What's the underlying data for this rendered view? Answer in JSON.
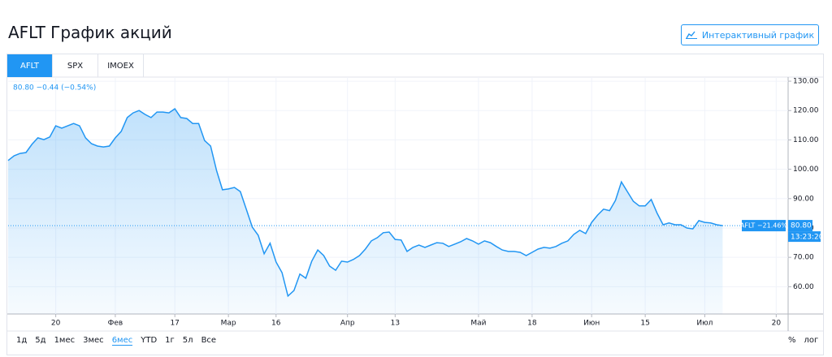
{
  "header": {
    "title": "AFLT График акций",
    "button": "Интерактивный график"
  },
  "tabs": {
    "items": [
      "AFLT",
      "SPX",
      "IMOEX"
    ],
    "active": "AFLT"
  },
  "ranges": {
    "items": [
      "1д",
      "5д",
      "1мес",
      "3мес",
      "6мес",
      "YTD",
      "1г",
      "5л",
      "Все"
    ],
    "active": "6мес",
    "right": [
      "%",
      "лог"
    ]
  },
  "chart_data": {
    "type": "line",
    "legend_text": "80.80 −0.44 (−0.54%)",
    "price_name_label": "AFLT −21.46%",
    "last_price_label": "80.80",
    "time_label": "13:23:20",
    "color": "#2196f3",
    "grid": true,
    "ylim": [
      50.7,
      131.4
    ],
    "yticks": [
      {
        "value": 60,
        "label": "60.00"
      },
      {
        "value": 70,
        "label": "70.00"
      },
      {
        "value": 80,
        "label": "80.00"
      },
      {
        "value": 90,
        "label": "90.00"
      },
      {
        "value": 100,
        "label": "100.00"
      },
      {
        "value": 110,
        "label": "110.00"
      },
      {
        "value": 120,
        "label": "120.00"
      },
      {
        "value": 130,
        "label": "130.00"
      }
    ],
    "categories": [
      null,
      null,
      null,
      null,
      null,
      null,
      null,
      null,
      "20",
      null,
      null,
      null,
      null,
      null,
      null,
      null,
      null,
      null,
      "Фев",
      null,
      null,
      null,
      null,
      null,
      null,
      null,
      null,
      null,
      "17",
      null,
      null,
      null,
      null,
      null,
      null,
      null,
      null,
      "Мар",
      null,
      null,
      null,
      null,
      null,
      null,
      null,
      "16",
      null,
      null,
      null,
      null,
      null,
      null,
      null,
      null,
      null,
      null,
      null,
      "Апр",
      null,
      null,
      null,
      null,
      null,
      null,
      null,
      "13",
      null,
      null,
      null,
      null,
      null,
      null,
      null,
      null,
      null,
      null,
      null,
      null,
      null,
      "Май",
      null,
      null,
      null,
      null,
      null,
      null,
      null,
      null,
      "18",
      null,
      null,
      null,
      null,
      null,
      null,
      null,
      null,
      null,
      "Июн",
      null,
      null,
      null,
      null,
      null,
      null,
      null,
      null,
      "15",
      null,
      null,
      null,
      null,
      null,
      null,
      null,
      null,
      null,
      "Июл",
      null,
      null,
      null,
      null,
      null,
      null,
      null,
      null,
      null,
      null,
      null,
      "20",
      null,
      null
    ],
    "values": [
      103,
      104.6,
      105.4,
      105.7,
      108.5,
      110.7,
      110.1,
      111,
      114.8,
      114,
      114.8,
      115.6,
      114.8,
      110.7,
      108.7,
      107.9,
      107.6,
      107.9,
      110.7,
      112.9,
      117.6,
      119.2,
      120,
      118.7,
      117.6,
      119.5,
      119.5,
      119.2,
      120.6,
      117.6,
      117.3,
      115.6,
      115.6,
      109.8,
      107.9,
      99.6,
      93,
      93.3,
      93.8,
      92.4,
      86.4,
      80.3,
      77.5,
      71.2,
      74.8,
      68.4,
      64.8,
      56.8,
      58.7,
      64.3,
      62.9,
      68.7,
      72.5,
      70.6,
      67,
      65.6,
      68.7,
      68.4,
      69.3,
      70.6,
      72.8,
      75.6,
      76.7,
      78.4,
      78.6,
      76.1,
      75.9,
      72,
      73.4,
      74.2,
      73.4,
      74.2,
      75,
      74.8,
      73.7,
      74.5,
      75.3,
      76.4,
      75.6,
      74.5,
      75.6,
      75,
      73.7,
      72.5,
      72,
      72,
      71.7,
      70.6,
      71.7,
      72.8,
      73.4,
      73.1,
      73.7,
      74.8,
      75.6,
      77.8,
      79.2,
      78.1,
      81.9,
      84.4,
      86.4,
      85.9,
      89.4,
      95.7,
      92.4,
      89.1,
      87.5,
      87.5,
      89.7,
      85,
      81.1,
      81.7,
      81.1,
      81.1,
      80,
      79.7,
      82.5,
      81.9,
      81.7,
      81.1,
      80.8,
      null,
      null,
      null,
      null,
      null,
      null,
      null,
      null,
      null,
      null,
      null
    ]
  }
}
